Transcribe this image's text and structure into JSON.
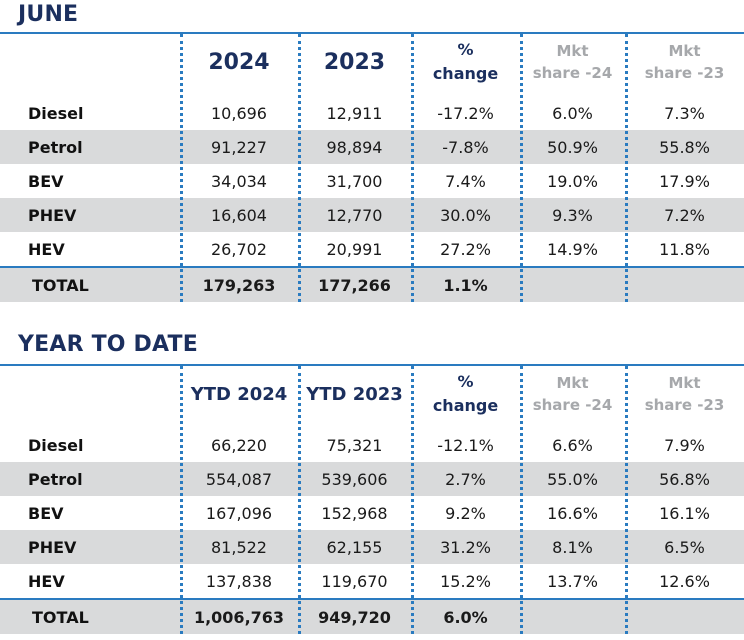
{
  "sections": [
    {
      "title": "JUNE",
      "headers": {
        "col1": "2024",
        "col2": "2023",
        "pct_line1": "%",
        "pct_line2": "change",
        "mkt24_line1": "Mkt",
        "mkt24_line2": "share -24",
        "mkt23_line1": "Mkt",
        "mkt23_line2": "share -23"
      },
      "rows": [
        {
          "label": "Diesel",
          "v2024": "10,696",
          "v2023": "12,911",
          "change": "-17.2%",
          "share24": "6.0%",
          "share23": "7.3%"
        },
        {
          "label": "Petrol",
          "v2024": "91,227",
          "v2023": "98,894",
          "change": "-7.8%",
          "share24": "50.9%",
          "share23": "55.8%"
        },
        {
          "label": "BEV",
          "v2024": "34,034",
          "v2023": "31,700",
          "change": "7.4%",
          "share24": "19.0%",
          "share23": "17.9%"
        },
        {
          "label": "PHEV",
          "v2024": "16,604",
          "v2023": "12,770",
          "change": "30.0%",
          "share24": "9.3%",
          "share23": "7.2%"
        },
        {
          "label": "HEV",
          "v2024": "26,702",
          "v2023": "20,991",
          "change": "27.2%",
          "share24": "14.9%",
          "share23": "11.8%"
        }
      ],
      "total": {
        "label": "TOTAL",
        "v2024": "179,263",
        "v2023": "177,266",
        "change": "1.1%"
      }
    },
    {
      "title": "YEAR TO DATE",
      "headers": {
        "col1": "YTD 2024",
        "col2": "YTD 2023",
        "pct_line1": "%",
        "pct_line2": "change",
        "mkt24_line1": "Mkt",
        "mkt24_line2": "share -24",
        "mkt23_line1": "Mkt",
        "mkt23_line2": "share -23"
      },
      "rows": [
        {
          "label": "Diesel",
          "v2024": "66,220",
          "v2023": "75,321",
          "change": "-12.1%",
          "share24": "6.6%",
          "share23": "7.9%"
        },
        {
          "label": "Petrol",
          "v2024": "554,087",
          "v2023": "539,606",
          "change": "2.7%",
          "share24": "55.0%",
          "share23": "56.8%"
        },
        {
          "label": "BEV",
          "v2024": "167,096",
          "v2023": "152,968",
          "change": "9.2%",
          "share24": "16.6%",
          "share23": "16.1%"
        },
        {
          "label": "PHEV",
          "v2024": "81,522",
          "v2023": "62,155",
          "change": "31.2%",
          "share24": "8.1%",
          "share23": "6.5%"
        },
        {
          "label": "HEV",
          "v2024": "137,838",
          "v2023": "119,670",
          "change": "15.2%",
          "share24": "13.7%",
          "share23": "12.6%"
        }
      ],
      "total": {
        "label": "TOTAL",
        "v2024": "1,006,763",
        "v2023": "949,720",
        "change": "6.0%"
      }
    }
  ],
  "colors": {
    "title": "#1b2f5e",
    "accent_blue": "#2a7bc0",
    "stripe_grey": "#d9dadb",
    "muted_header": "#a6a8ab"
  }
}
